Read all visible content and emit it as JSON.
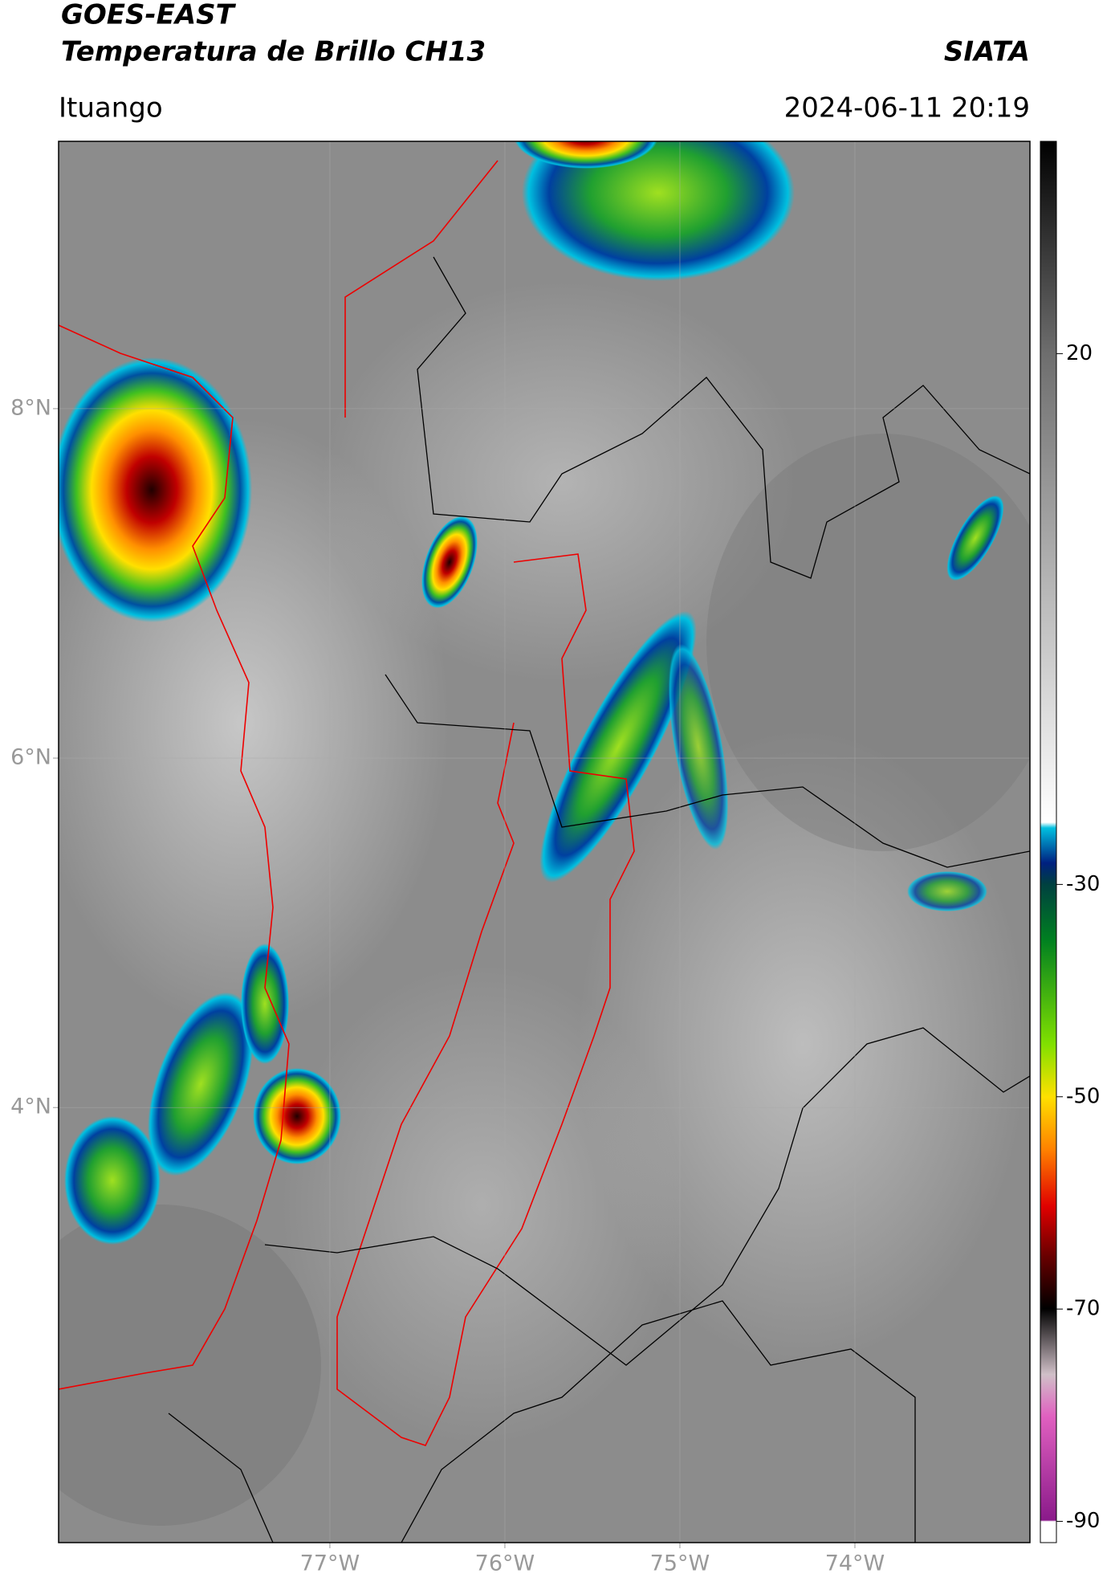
{
  "header": {
    "title_line1": "GOES-EAST",
    "title_line2": "Temperatura de Brillo CH13",
    "source": "SIATA",
    "location": "Ituango",
    "datetime": "2024-06-11 20:19"
  },
  "map": {
    "latlim": [
      1.51,
      9.53
    ],
    "lonlim": [
      -78.55,
      -73.0
    ],
    "lat_ticks": [
      {
        "value": 8,
        "label": "8°N"
      },
      {
        "value": 6,
        "label": "6°N"
      },
      {
        "value": 4,
        "label": "4°N"
      }
    ],
    "lon_ticks": [
      {
        "value": -77,
        "label": "77°W"
      },
      {
        "value": -76,
        "label": "76°W"
      },
      {
        "value": -75,
        "label": "75°W"
      },
      {
        "value": -74,
        "label": "74°W"
      }
    ]
  },
  "colorbar": {
    "lim": [
      -92,
      40
    ],
    "ticks": [
      20,
      -30,
      -50,
      -70,
      -90
    ]
  }
}
